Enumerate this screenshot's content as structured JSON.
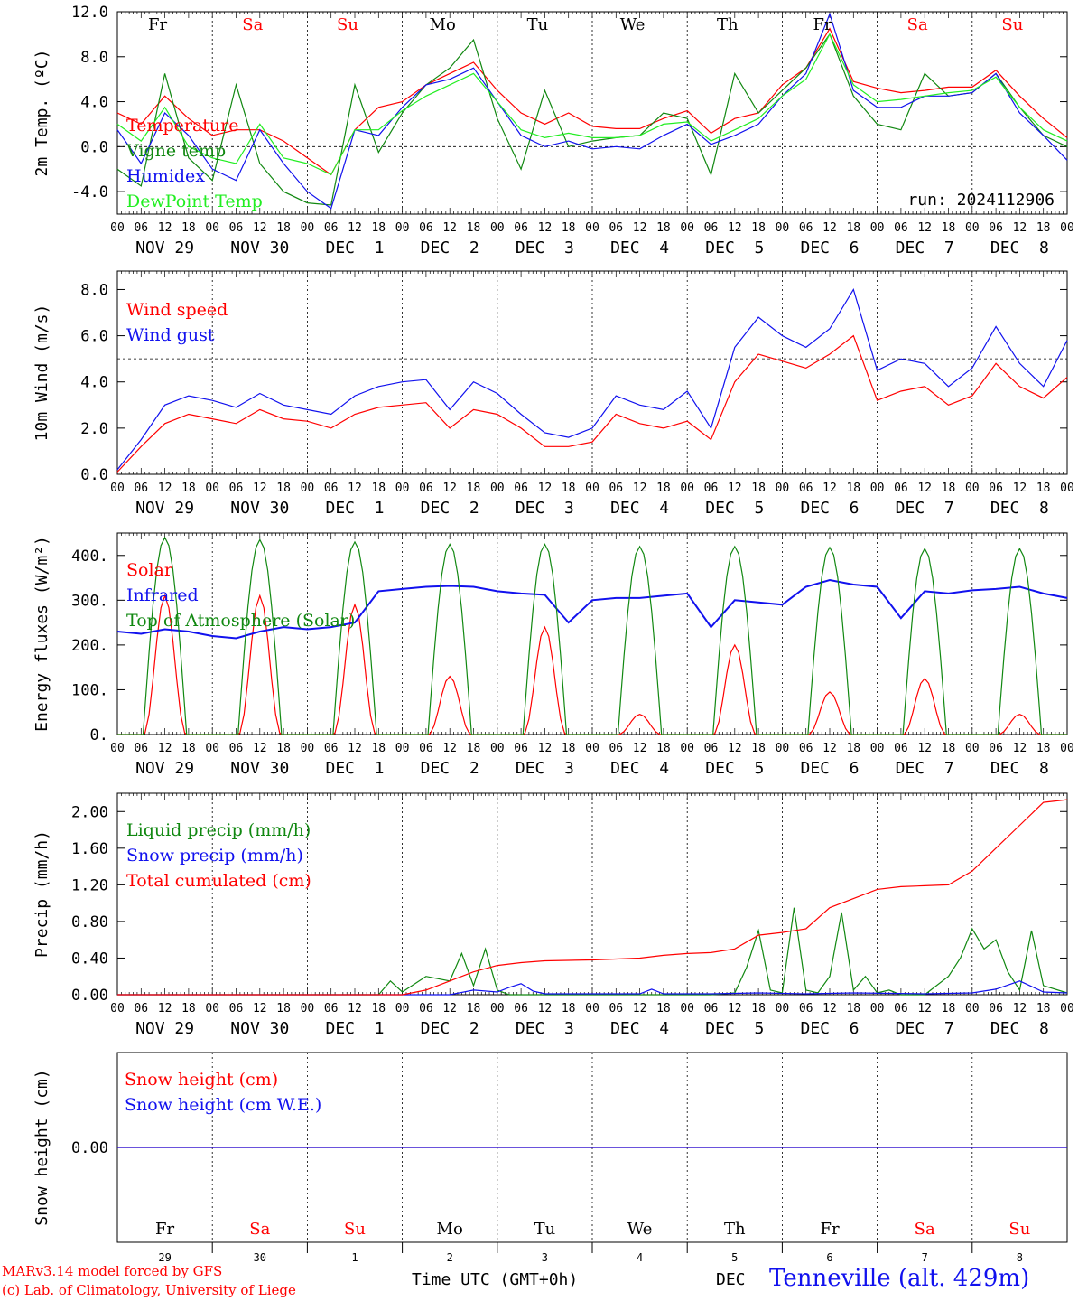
{
  "colors": {
    "red": "#ff0000",
    "green": "#118811",
    "blue": "#1111ee",
    "lightgreen": "#22ee22",
    "black": "#000000"
  },
  "footer": {
    "model": "MARv3.14 model forced by GFS",
    "copyright": "(c) Lab. of Climatology, University of Liege",
    "xlabel": "Time UTC (GMT+0h)",
    "month": "DEC",
    "station": "Tenneville (alt. 429m)"
  },
  "time_axis": {
    "hour_labels": [
      "00",
      "06",
      "12",
      "18"
    ],
    "end_label": "00",
    "date_labels": [
      "NOV 29",
      "NOV 30",
      "DEC  1",
      "DEC  2",
      "DEC  3",
      "DEC  4",
      "DEC  5",
      "DEC  6",
      "DEC  7",
      "DEC  8"
    ],
    "weekdays": [
      {
        "label": "Fr",
        "weekend": false
      },
      {
        "label": "Sa",
        "weekend": true
      },
      {
        "label": "Su",
        "weekend": true
      },
      {
        "label": "Mo",
        "weekend": false
      },
      {
        "label": "Tu",
        "weekend": false
      },
      {
        "label": "We",
        "weekend": false
      },
      {
        "label": "Th",
        "weekend": false
      },
      {
        "label": "Fr",
        "weekend": false
      },
      {
        "label": "Sa",
        "weekend": true
      },
      {
        "label": "Su",
        "weekend": true
      }
    ],
    "day_numbers": [
      "29",
      "30",
      "1",
      "2",
      "3",
      "4",
      "5",
      "6",
      "7",
      "8"
    ],
    "x_range_hours": [
      0,
      240
    ]
  },
  "chart_data": [
    {
      "id": "temperature",
      "type": "line",
      "ylabel": "2m Temp. (ºC)",
      "ylim": [
        -6,
        12
      ],
      "yticks": [
        -4,
        0,
        4,
        8,
        12
      ],
      "ytick_labels": [
        "-4.0",
        "0.0",
        "4.0",
        "8.0",
        "12.0"
      ],
      "ref_line": 0,
      "annotation": "run: 2024112906",
      "series": [
        {
          "name": "Temperature",
          "color": "red",
          "x": [
            0,
            6,
            12,
            18,
            24,
            30,
            36,
            42,
            48,
            54,
            60,
            66,
            72,
            78,
            84,
            90,
            96,
            102,
            108,
            114,
            120,
            126,
            132,
            138,
            144,
            150,
            156,
            162,
            168,
            174,
            180,
            186,
            192,
            198,
            204,
            210,
            216,
            222,
            228,
            234,
            240
          ],
          "values": [
            3.0,
            2.0,
            4.5,
            2.5,
            1.0,
            1.5,
            1.5,
            0.5,
            -1.0,
            -2.5,
            1.5,
            3.5,
            4.0,
            5.5,
            6.5,
            7.5,
            5.0,
            3.0,
            2.0,
            3.0,
            1.8,
            1.6,
            1.6,
            2.5,
            3.2,
            1.2,
            2.5,
            3.0,
            5.5,
            7.0,
            10.5,
            5.8,
            5.2,
            4.8,
            5.0,
            5.3,
            5.3,
            6.8,
            4.5,
            2.5,
            0.8
          ]
        },
        {
          "name": "Vigne temp",
          "color": "green",
          "x": [
            0,
            6,
            12,
            18,
            24,
            30,
            36,
            42,
            48,
            54,
            60,
            66,
            72,
            78,
            84,
            90,
            96,
            102,
            108,
            114,
            120,
            126,
            132,
            138,
            144,
            150,
            156,
            162,
            168,
            174,
            180,
            186,
            192,
            198,
            204,
            210,
            216,
            222,
            228,
            234,
            240
          ],
          "values": [
            -2.0,
            -3.5,
            6.5,
            -1.0,
            -3.0,
            5.5,
            -1.5,
            -4.0,
            -5.0,
            -5.2,
            5.5,
            -0.5,
            3.0,
            5.5,
            7.0,
            9.5,
            2.5,
            -2.0,
            5.0,
            0.0,
            0.5,
            0.8,
            1.0,
            3.0,
            2.5,
            -2.5,
            6.5,
            3.0,
            5.0,
            7.0,
            10.0,
            4.5,
            2.0,
            1.5,
            6.5,
            4.5,
            4.8,
            6.5,
            3.5,
            1.0,
            0.0
          ]
        },
        {
          "name": "Humidex",
          "color": "blue",
          "x": [
            0,
            6,
            12,
            18,
            24,
            30,
            36,
            42,
            48,
            54,
            60,
            66,
            72,
            78,
            84,
            90,
            96,
            102,
            108,
            114,
            120,
            126,
            132,
            138,
            144,
            150,
            156,
            162,
            168,
            174,
            180,
            186,
            192,
            198,
            204,
            210,
            216,
            222,
            228,
            234,
            240
          ],
          "values": [
            1.5,
            -1.5,
            3.0,
            1.0,
            -2.0,
            -3.0,
            1.5,
            -1.5,
            -4.0,
            -5.5,
            1.5,
            1.0,
            3.5,
            5.5,
            6.0,
            7.0,
            4.0,
            1.0,
            0.0,
            0.5,
            -0.2,
            0.0,
            -0.2,
            1.0,
            2.0,
            0.2,
            1.0,
            2.0,
            4.5,
            6.5,
            11.8,
            5.0,
            3.5,
            3.5,
            4.5,
            4.5,
            4.8,
            6.5,
            3.0,
            1.0,
            -1.2
          ]
        },
        {
          "name": "DewPoint Temp",
          "color": "lightgreen",
          "x": [
            0,
            6,
            12,
            18,
            24,
            30,
            36,
            42,
            48,
            54,
            60,
            66,
            72,
            78,
            84,
            90,
            96,
            102,
            108,
            114,
            120,
            126,
            132,
            138,
            144,
            150,
            156,
            162,
            168,
            174,
            180,
            186,
            192,
            198,
            204,
            210,
            216,
            222,
            228,
            234,
            240
          ],
          "values": [
            2.0,
            0.5,
            3.5,
            0.0,
            -1.0,
            -1.5,
            2.0,
            -1.0,
            -1.5,
            -2.5,
            1.5,
            1.5,
            3.2,
            4.5,
            5.5,
            6.5,
            4.0,
            1.5,
            0.8,
            1.2,
            0.8,
            0.8,
            1.0,
            2.0,
            2.2,
            0.5,
            1.5,
            2.5,
            4.5,
            6.0,
            10.0,
            5.5,
            4.0,
            4.2,
            4.5,
            4.8,
            5.0,
            6.2,
            3.5,
            1.5,
            0.5
          ]
        }
      ]
    },
    {
      "id": "wind",
      "type": "line",
      "ylabel": "10m Wind (m/s)",
      "ylim": [
        0,
        8.8
      ],
      "yticks": [
        0,
        2,
        4,
        6,
        8
      ],
      "ytick_labels": [
        "0.0",
        "2.0",
        "4.0",
        "6.0",
        "8.0"
      ],
      "ref_line": 5,
      "series": [
        {
          "name": "Wind speed",
          "color": "red",
          "x": [
            0,
            6,
            12,
            18,
            24,
            30,
            36,
            42,
            48,
            54,
            60,
            66,
            72,
            78,
            84,
            90,
            96,
            102,
            108,
            114,
            120,
            126,
            132,
            138,
            144,
            150,
            156,
            162,
            168,
            174,
            180,
            186,
            192,
            198,
            204,
            210,
            216,
            222,
            228,
            234,
            240
          ],
          "values": [
            0.1,
            1.2,
            2.2,
            2.6,
            2.4,
            2.2,
            2.8,
            2.4,
            2.3,
            2.0,
            2.6,
            2.9,
            3.0,
            3.1,
            2.0,
            2.8,
            2.6,
            2.0,
            1.2,
            1.2,
            1.4,
            2.6,
            2.2,
            2.0,
            2.3,
            1.5,
            4.0,
            5.2,
            4.9,
            4.6,
            5.2,
            6.0,
            3.2,
            3.6,
            3.8,
            3.0,
            3.4,
            4.8,
            3.8,
            3.3,
            4.2
          ]
        },
        {
          "name": "Wind gust",
          "color": "blue",
          "x": [
            0,
            6,
            12,
            18,
            24,
            30,
            36,
            42,
            48,
            54,
            60,
            66,
            72,
            78,
            84,
            90,
            96,
            102,
            108,
            114,
            120,
            126,
            132,
            138,
            144,
            150,
            156,
            162,
            168,
            174,
            180,
            186,
            192,
            198,
            204,
            210,
            216,
            222,
            228,
            234,
            240
          ],
          "values": [
            0.2,
            1.5,
            3.0,
            3.4,
            3.2,
            2.9,
            3.5,
            3.0,
            2.8,
            2.6,
            3.4,
            3.8,
            4.0,
            4.1,
            2.8,
            4.0,
            3.5,
            2.6,
            1.8,
            1.6,
            2.0,
            3.4,
            3.0,
            2.8,
            3.6,
            2.0,
            5.5,
            6.8,
            6.0,
            5.5,
            6.3,
            8.0,
            4.5,
            5.0,
            4.8,
            3.8,
            4.6,
            6.4,
            4.8,
            3.8,
            5.8
          ]
        }
      ]
    },
    {
      "id": "energy",
      "type": "line",
      "ylabel": "Energy fluxes (W/m²)",
      "ylim": [
        0,
        450
      ],
      "yticks": [
        0,
        100,
        200,
        300,
        400
      ],
      "ytick_labels": [
        "0.",
        "100.",
        "200.",
        "300.",
        "400."
      ],
      "series": [
        {
          "name": "Solar",
          "color": "red",
          "peaks": [
            310,
            310,
            290,
            130,
            240,
            45,
            200,
            95,
            125,
            45
          ]
        },
        {
          "name": "Infrared",
          "color": "blue",
          "x": [
            0,
            6,
            12,
            18,
            24,
            30,
            36,
            42,
            48,
            54,
            60,
            66,
            72,
            78,
            84,
            90,
            96,
            102,
            108,
            114,
            120,
            126,
            132,
            138,
            144,
            150,
            156,
            162,
            168,
            174,
            180,
            186,
            192,
            198,
            204,
            210,
            216,
            222,
            228,
            234,
            240
          ],
          "values": [
            230,
            225,
            235,
            230,
            220,
            215,
            230,
            240,
            235,
            240,
            250,
            320,
            325,
            330,
            332,
            330,
            320,
            315,
            312,
            250,
            300,
            305,
            305,
            310,
            315,
            240,
            300,
            295,
            290,
            330,
            345,
            335,
            330,
            260,
            320,
            315,
            322,
            325,
            330,
            315,
            305
          ]
        },
        {
          "name": "Top of Atmosphere (Solar)",
          "color": "green",
          "peaks": [
            440,
            435,
            430,
            425,
            425,
            420,
            420,
            418,
            415,
            415
          ]
        }
      ]
    },
    {
      "id": "precip",
      "type": "line",
      "ylabel": "Precip (mm/h)",
      "ylim": [
        0,
        2.2
      ],
      "yticks": [
        0,
        0.4,
        0.8,
        1.2,
        1.6,
        2.0
      ],
      "ytick_labels": [
        "0.00",
        "0.40",
        "0.80",
        "1.20",
        "1.60",
        "2.00"
      ],
      "series": [
        {
          "name": "Liquid precip (mm/h)",
          "color": "green",
          "x": [
            0,
            66,
            69,
            72,
            78,
            84,
            87,
            90,
            93,
            96,
            99,
            102,
            108,
            150,
            156,
            159,
            162,
            165,
            168,
            171,
            174,
            177,
            180,
            183,
            186,
            189,
            192,
            195,
            198,
            204,
            210,
            213,
            216,
            219,
            222,
            225,
            228,
            231,
            234,
            240
          ],
          "values": [
            0,
            0,
            0.15,
            0.03,
            0.2,
            0.15,
            0.45,
            0.1,
            0.5,
            0.05,
            0,
            0,
            0,
            0,
            0.02,
            0.3,
            0.7,
            0.05,
            0.02,
            0.95,
            0.05,
            0.02,
            0.2,
            0.9,
            0.05,
            0.2,
            0.02,
            0.05,
            0,
            0,
            0.2,
            0.4,
            0.72,
            0.5,
            0.6,
            0.25,
            0.05,
            0.7,
            0.1,
            0.02
          ]
        },
        {
          "name": "Snow precip (mm/h)",
          "color": "blue",
          "x": [
            0,
            84,
            90,
            96,
            99,
            102,
            105,
            108,
            114,
            120,
            132,
            135,
            138,
            150,
            162,
            174,
            186,
            204,
            216,
            222,
            228,
            234,
            240
          ],
          "values": [
            0,
            0,
            0.05,
            0.03,
            0.08,
            0.12,
            0.04,
            0.01,
            0.01,
            0.01,
            0.01,
            0.06,
            0.01,
            0.01,
            0.02,
            0.01,
            0.02,
            0.01,
            0.02,
            0.06,
            0.15,
            0.03,
            0.02
          ]
        },
        {
          "name": "Total cumulated (cm)",
          "color": "red",
          "x": [
            0,
            72,
            78,
            84,
            90,
            96,
            102,
            108,
            120,
            132,
            138,
            144,
            150,
            156,
            162,
            168,
            174,
            180,
            186,
            192,
            198,
            204,
            210,
            216,
            222,
            228,
            234,
            240
          ],
          "values": [
            0,
            0,
            0.05,
            0.15,
            0.25,
            0.32,
            0.35,
            0.37,
            0.38,
            0.4,
            0.43,
            0.45,
            0.46,
            0.5,
            0.65,
            0.68,
            0.72,
            0.95,
            1.05,
            1.15,
            1.18,
            1.19,
            1.2,
            1.35,
            1.6,
            1.85,
            2.1,
            2.13
          ]
        }
      ]
    },
    {
      "id": "snow",
      "type": "line",
      "ylabel": "Snow height (cm)",
      "ylim": [
        -1,
        1
      ],
      "yticks": [
        0
      ],
      "ytick_labels": [
        "0.00"
      ],
      "series": [
        {
          "name": "Snow height (cm)",
          "color": "red",
          "x": [
            0,
            240
          ],
          "values": [
            0,
            0
          ]
        },
        {
          "name": "Snow height (cm W.E.)",
          "color": "blue",
          "x": [
            0,
            240
          ],
          "values": [
            0,
            0
          ]
        }
      ]
    }
  ]
}
